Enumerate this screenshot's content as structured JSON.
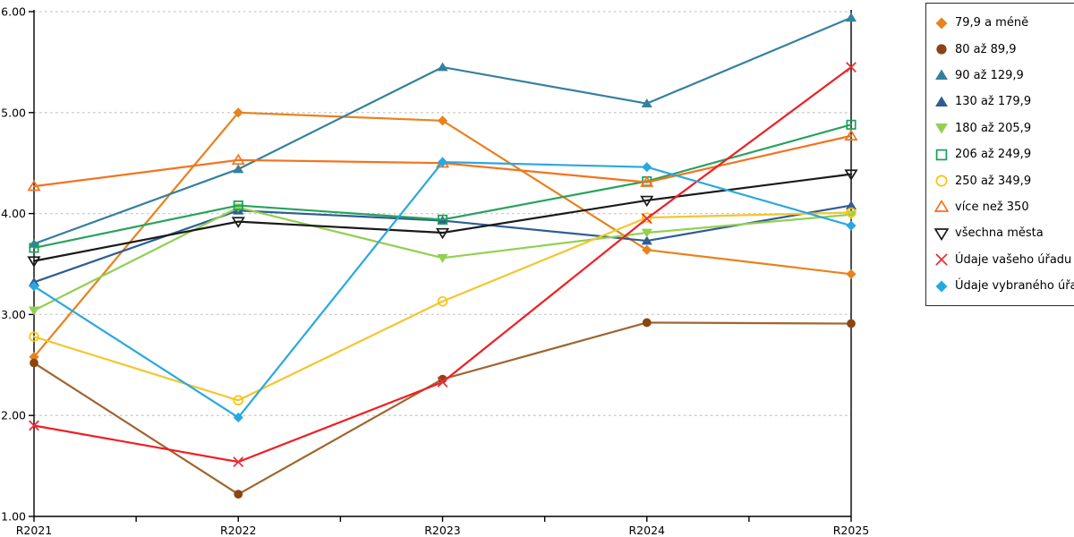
{
  "chart_data": {
    "type": "line",
    "title": "",
    "xlabel": "",
    "ylabel": "",
    "categories": [
      "R2021",
      "R2022",
      "R2023",
      "R2024",
      "R2025"
    ],
    "ylim": [
      1,
      6
    ],
    "ytick_labels": [
      "1.00",
      "2.00",
      "3.00",
      "4.00",
      "5.00",
      "6.00"
    ],
    "grid": "horizontal-dashed",
    "grid_color": "#c8c8c8",
    "axis_color": "#000000",
    "tick_label_color": "#000000",
    "legend_position": "right-outside",
    "legend_border_color": "#2b2b2b",
    "series": [
      {
        "name": "79,9 a méně",
        "marker": "diamond",
        "filled": true,
        "color": "#e8821e",
        "marker_color": "#e8821e",
        "values": [
          2.58,
          5.0,
          4.92,
          3.64,
          3.4
        ]
      },
      {
        "name": "80 až 89,9",
        "marker": "circle",
        "filled": true,
        "color": "#a0652f",
        "marker_color": "#8b4513",
        "values": [
          2.52,
          1.22,
          2.36,
          2.92,
          2.91
        ]
      },
      {
        "name": "90 až 129,9",
        "marker": "triangle-up",
        "filled": true,
        "color": "#35809e",
        "marker_color": "#35809e",
        "values": [
          3.7,
          4.44,
          5.45,
          5.09,
          5.94
        ]
      },
      {
        "name": "130 až 179,9",
        "marker": "triangle-up",
        "filled": true,
        "color": "#2f5d93",
        "marker_color": "#2f5d93",
        "values": [
          3.32,
          4.03,
          3.93,
          3.73,
          4.08
        ]
      },
      {
        "name": "180 až 205,9",
        "marker": "triangle-down",
        "filled": true,
        "color": "#92d050",
        "marker_color": "#92d050",
        "values": [
          3.04,
          4.06,
          3.56,
          3.81,
          3.99
        ]
      },
      {
        "name": "206 až 249,9",
        "marker": "square",
        "filled": false,
        "color": "#27a35d",
        "marker_color": "#17a05c",
        "values": [
          3.66,
          4.08,
          3.94,
          4.32,
          4.88
        ]
      },
      {
        "name": "250 až 349,9",
        "marker": "circle",
        "filled": false,
        "color": "#f3c62f",
        "marker_color": "#fdc409",
        "values": [
          2.78,
          2.15,
          3.13,
          3.96,
          4.01
        ]
      },
      {
        "name": "více než 350",
        "marker": "triangle-up",
        "filled": false,
        "color": "#f4731d",
        "marker_color": "#f4731d",
        "values": [
          4.27,
          4.53,
          4.5,
          4.31,
          4.77
        ]
      },
      {
        "name": "všechna města",
        "marker": "triangle-down",
        "filled": false,
        "color": "#1a1a1a",
        "marker_color": "#1a1a1a",
        "values": [
          3.53,
          3.92,
          3.81,
          4.13,
          4.39
        ]
      },
      {
        "name": "Údaje vašeho úřadu",
        "marker": "x",
        "filled": false,
        "color": "#f01e24",
        "marker_color": "#e8323a",
        "values": [
          1.9,
          1.54,
          2.33,
          3.95,
          5.45
        ]
      },
      {
        "name": "Údaje vybraného úřadu",
        "marker": "diamond",
        "filled": true,
        "color": "#29a8e0",
        "marker_color": "#29a8e0",
        "values": [
          3.28,
          1.98,
          4.51,
          4.46,
          3.88
        ]
      }
    ]
  }
}
